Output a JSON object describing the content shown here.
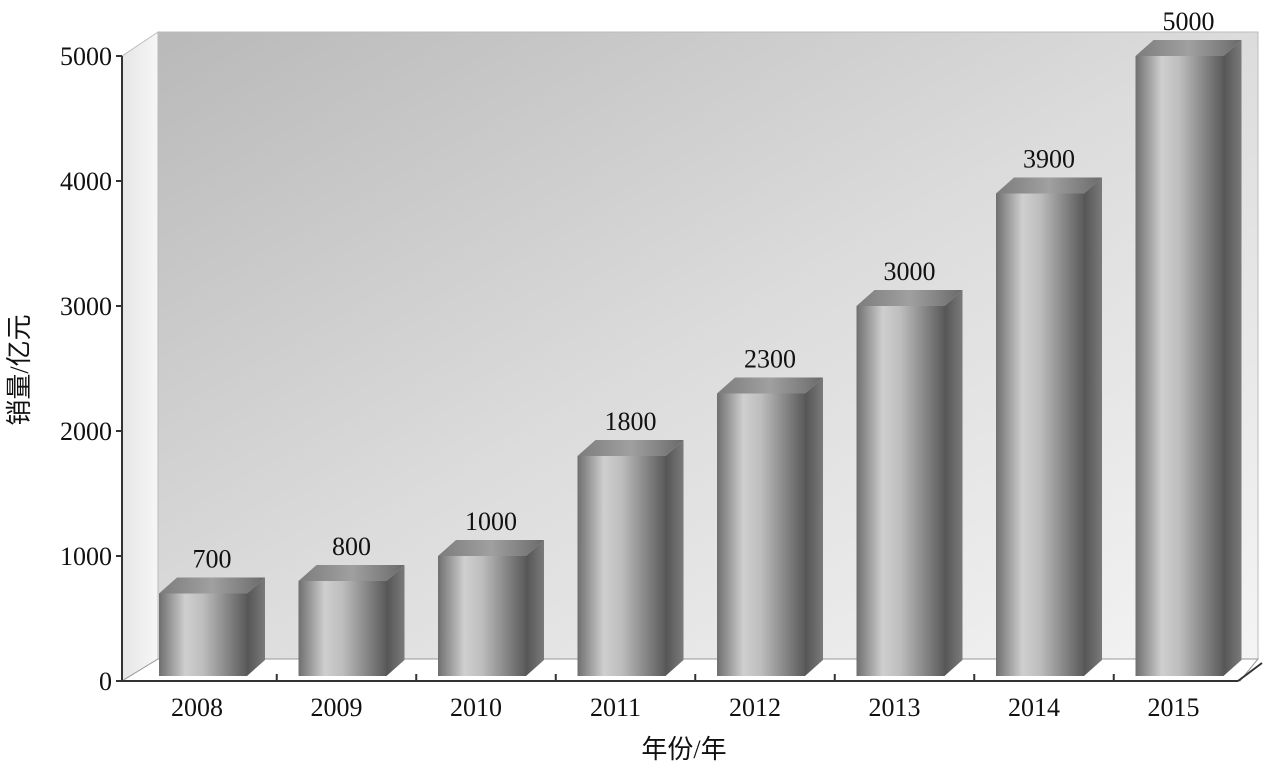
{
  "chart_data": {
    "type": "bar",
    "style": "3d",
    "categories": [
      "2008",
      "2009",
      "2010",
      "2011",
      "2012",
      "2013",
      "2014",
      "2015"
    ],
    "values": [
      700,
      800,
      1000,
      1800,
      2300,
      3000,
      3900,
      5000
    ],
    "data_labels": [
      "700",
      "800",
      "1000",
      "1800",
      "2300",
      "3000",
      "3900",
      "5000"
    ],
    "xlabel": "年份/年",
    "ylabel": "销量/亿元",
    "ylim": [
      0,
      5000
    ],
    "yticks": [
      "0",
      "1000",
      "2000",
      "3000",
      "4000",
      "5000"
    ],
    "grid": false,
    "colors": {
      "bar": "#8a8a8a",
      "wall": "#c8c8c8",
      "floor": "#ffffff"
    }
  }
}
